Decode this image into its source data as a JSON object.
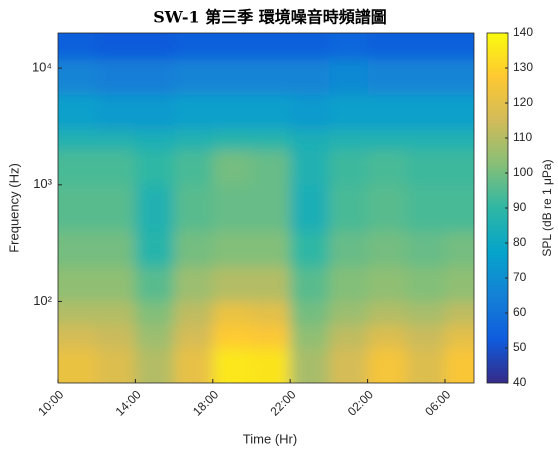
{
  "chart_data": {
    "type": "heatmap",
    "title": "SW-1 第三季 環境噪音時頻譜圖",
    "x_label": "Time (Hr)",
    "y_label": "Frequency (Hz)",
    "colorbar_label": "SPL (dB re 1 μPa)",
    "x": [
      0,
      2,
      4,
      6,
      8,
      10,
      12,
      14,
      16,
      18,
      20,
      21.5
    ],
    "y": [
      20,
      40,
      63,
      100,
      200,
      400,
      1000,
      2000,
      3000,
      6000,
      12000,
      20000
    ],
    "z": [
      [
        122,
        118,
        110,
        121,
        135,
        134,
        108,
        116,
        125,
        118,
        126
      ],
      [
        116,
        114,
        106,
        116,
        128,
        127,
        104,
        112,
        118,
        114,
        120
      ],
      [
        110,
        110,
        102,
        112,
        122,
        120,
        100,
        106,
        110,
        108,
        112
      ],
      [
        104,
        104,
        96,
        106,
        110,
        110,
        96,
        102,
        104,
        102,
        104
      ],
      [
        100,
        100,
        88,
        100,
        102,
        102,
        90,
        98,
        100,
        98,
        100
      ],
      [
        96,
        96,
        86,
        96,
        98,
        98,
        84,
        94,
        96,
        94,
        94
      ],
      [
        94,
        94,
        90,
        94,
        100,
        98,
        86,
        92,
        94,
        92,
        92
      ],
      [
        86,
        86,
        84,
        86,
        88,
        88,
        84,
        86,
        86,
        86,
        86
      ],
      [
        76,
        74,
        74,
        76,
        76,
        76,
        74,
        76,
        76,
        76,
        76
      ],
      [
        66,
        64,
        64,
        66,
        66,
        66,
        66,
        68,
        66,
        66,
        66
      ],
      [
        54,
        52,
        52,
        54,
        54,
        54,
        54,
        56,
        54,
        54,
        54
      ]
    ],
    "xlim": [
      0,
      21.5
    ],
    "xticks": [
      {
        "value": 0,
        "label": "10:00"
      },
      {
        "value": 4,
        "label": "14:00"
      },
      {
        "value": 8,
        "label": "18:00"
      },
      {
        "value": 12,
        "label": "22:00"
      },
      {
        "value": 16,
        "label": "02:00"
      },
      {
        "value": 20,
        "label": "06:00"
      }
    ],
    "ylim": [
      20,
      20000
    ],
    "ylog": true,
    "yticks": [
      {
        "value": 100,
        "label": "10²"
      },
      {
        "value": 1000,
        "label": "10³"
      },
      {
        "value": 10000,
        "label": "10⁴"
      }
    ],
    "clim": [
      40,
      140
    ],
    "cticks": [
      40,
      50,
      60,
      70,
      80,
      90,
      100,
      110,
      120,
      130,
      140
    ],
    "colormap": [
      "#352a87",
      "#0f5cdd",
      "#1481d6",
      "#06a4ca",
      "#2eb7a4",
      "#87bf77",
      "#d1bb59",
      "#fec832",
      "#f9fb0e"
    ]
  }
}
